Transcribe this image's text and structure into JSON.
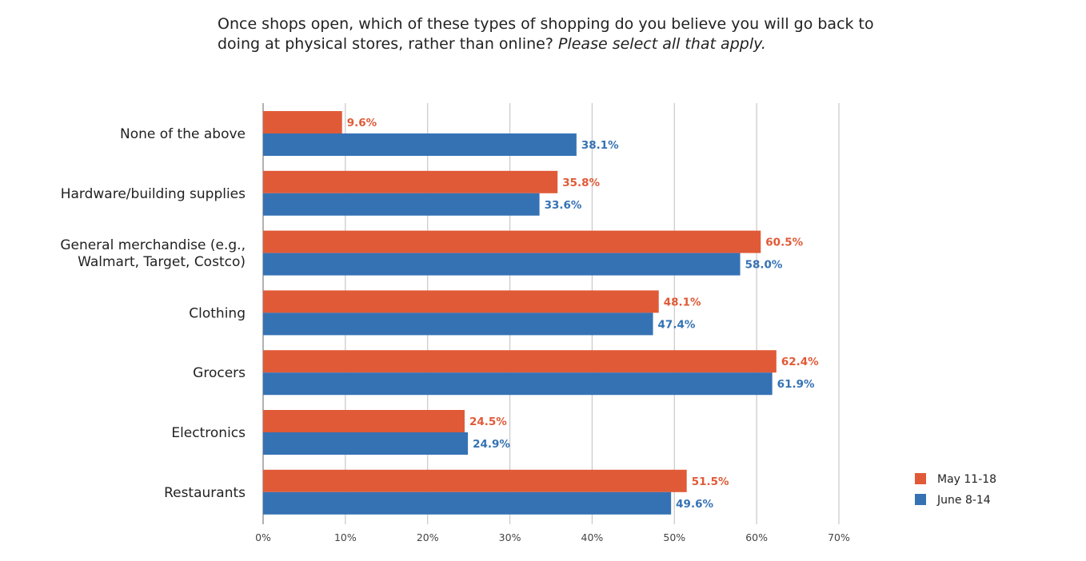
{
  "chart_data": {
    "type": "bar",
    "orientation": "horizontal",
    "title": "Once shops open, which of these types of shopping do you believe you will go back to doing at physical stores, rather than online?",
    "title_emphasis": "Please select all that apply.",
    "categories": [
      [
        "None of the above"
      ],
      [
        "Hardware/building supplies"
      ],
      [
        "General merchandise (e.g.,",
        "Walmart, Target, Costco)"
      ],
      [
        "Clothing"
      ],
      [
        "Grocers"
      ],
      [
        "Electronics"
      ],
      [
        "Restaurants"
      ]
    ],
    "series": [
      {
        "name": "May 11-18",
        "color": "#E05A37",
        "values": [
          9.6,
          35.8,
          60.5,
          48.1,
          62.4,
          24.5,
          51.5
        ]
      },
      {
        "name": "June 8-14",
        "color": "#3572B4",
        "values": [
          38.1,
          33.6,
          58.0,
          47.4,
          61.9,
          24.9,
          49.6
        ]
      }
    ],
    "xlim": [
      0,
      70
    ],
    "xticks": [
      "0%",
      "10%",
      "20%",
      "30%",
      "40%",
      "50%",
      "60%",
      "70%"
    ],
    "grid": true,
    "legend_position": "bottom-right",
    "xlabel": "",
    "ylabel": ""
  }
}
